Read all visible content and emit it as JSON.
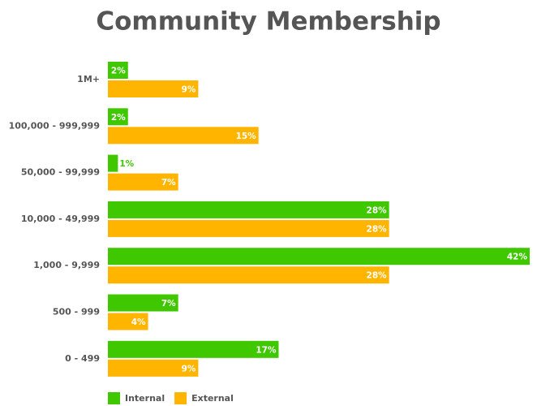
{
  "chart_data": {
    "type": "bar",
    "orientation": "horizontal",
    "title": "Community Membership",
    "categories": [
      "1M+",
      "100,000 - 999,999",
      "50,000 - 99,999",
      "10,000 - 49,999",
      "1,000 - 9,999",
      "500 - 999",
      "0 - 499"
    ],
    "series": [
      {
        "name": "Internal",
        "color": "#3fc800",
        "values": [
          2,
          2,
          1,
          28,
          42,
          7,
          17
        ],
        "value_labels": [
          "2%",
          "2%",
          "1%",
          "28%",
          "42%",
          "7%",
          "17%"
        ]
      },
      {
        "name": "External",
        "color": "#ffb400",
        "values": [
          9,
          15,
          7,
          28,
          28,
          4,
          9
        ],
        "value_labels": [
          "9%",
          "15%",
          "7%",
          "28%",
          "28%",
          "4%",
          "9%"
        ]
      }
    ],
    "legend": "bottom-left"
  }
}
